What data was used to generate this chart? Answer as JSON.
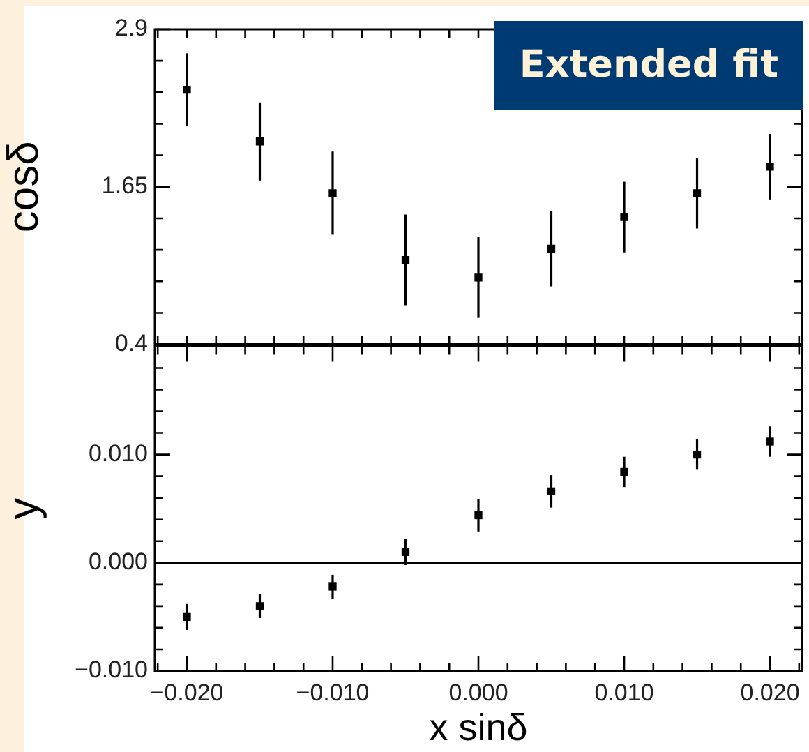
{
  "chart_data": [
    {
      "type": "scatter",
      "ylabel": "cosδ",
      "annotations": [
        "Extended fit"
      ],
      "tick_labels": "y",
      "marker": "square",
      "color": "#000000",
      "x": [
        -0.02,
        -0.015,
        -0.01,
        -0.005,
        0.0,
        0.005,
        0.01,
        0.015,
        0.02
      ],
      "values": [
        2.42,
        2.01,
        1.6,
        1.07,
        0.93,
        1.16,
        1.41,
        1.6,
        1.81
      ],
      "errors": [
        0.29,
        0.31,
        0.33,
        0.36,
        0.32,
        0.3,
        0.28,
        0.28,
        0.26
      ],
      "xlim": [
        -0.0222,
        0.0222
      ],
      "xticks": [
        {
          "value": -0.022,
          "label": null
        },
        {
          "value": -0.02,
          "label": null
        },
        {
          "value": -0.018,
          "label": null
        },
        {
          "value": -0.016,
          "label": null
        },
        {
          "value": -0.014,
          "label": null
        },
        {
          "value": -0.012,
          "label": null
        },
        {
          "value": -0.01,
          "label": null
        },
        {
          "value": -0.008,
          "label": null
        },
        {
          "value": -0.006,
          "label": null
        },
        {
          "value": -0.004,
          "label": null
        },
        {
          "value": -0.002,
          "label": null
        },
        {
          "value": 0,
          "label": null
        },
        {
          "value": 0.002,
          "label": null
        },
        {
          "value": 0.004,
          "label": null
        },
        {
          "value": 0.006,
          "label": null
        },
        {
          "value": 0.008,
          "label": null
        },
        {
          "value": 0.01,
          "label": null
        },
        {
          "value": 0.012,
          "label": null
        },
        {
          "value": 0.014,
          "label": null
        },
        {
          "value": 0.016,
          "label": null
        },
        {
          "value": 0.018,
          "label": null
        },
        {
          "value": 0.02,
          "label": null
        },
        {
          "value": 0.022,
          "label": null
        }
      ],
      "ylim": [
        0.4,
        2.9
      ],
      "yticks": [
        0.4,
        {
          "value": 0.65,
          "label": null
        },
        {
          "value": 0.9,
          "label": null
        },
        {
          "value": 1.15,
          "label": null
        },
        {
          "value": 1.4,
          "label": null
        },
        1.65,
        {
          "value": 1.9,
          "label": null
        },
        {
          "value": 2.15,
          "label": null
        },
        {
          "value": 2.4,
          "label": null
        },
        {
          "value": 2.65,
          "label": null
        },
        2.9
      ]
    },
    {
      "type": "scatter",
      "xlabel": "x sinδ",
      "ylabel": "y",
      "marker": "square",
      "color": "#000000",
      "x": [
        -0.02,
        -0.015,
        -0.01,
        -0.005,
        0.0,
        0.005,
        0.01,
        0.015,
        0.02
      ],
      "values": [
        -0.005,
        -0.004,
        -0.0022,
        0.001,
        0.0044,
        0.0066,
        0.0084,
        0.01,
        0.0112
      ],
      "errors": [
        0.0012,
        0.0011,
        0.0011,
        0.0012,
        0.0015,
        0.0015,
        0.0014,
        0.0014,
        0.0014
      ],
      "ref_lines": [
        {
          "axis": "y",
          "value": 0,
          "color": "#000000"
        }
      ],
      "xlim": [
        -0.0222,
        0.0222
      ],
      "xticks": [
        {
          "value": -0.022,
          "label": null
        },
        {
          "value": -0.02,
          "label": "−0.020"
        },
        {
          "value": -0.018,
          "label": null
        },
        {
          "value": -0.016,
          "label": null
        },
        {
          "value": -0.014,
          "label": null
        },
        {
          "value": -0.012,
          "label": null
        },
        {
          "value": -0.01,
          "label": "−0.010"
        },
        {
          "value": -0.008,
          "label": null
        },
        {
          "value": -0.006,
          "label": null
        },
        {
          "value": -0.004,
          "label": null
        },
        {
          "value": -0.002,
          "label": null
        },
        {
          "value": 0,
          "label": "0.000"
        },
        {
          "value": 0.002,
          "label": null
        },
        {
          "value": 0.004,
          "label": null
        },
        {
          "value": 0.006,
          "label": null
        },
        {
          "value": 0.008,
          "label": null
        },
        {
          "value": 0.01,
          "label": "0.010"
        },
        {
          "value": 0.012,
          "label": null
        },
        {
          "value": 0.014,
          "label": null
        },
        {
          "value": 0.016,
          "label": null
        },
        {
          "value": 0.018,
          "label": null
        },
        {
          "value": 0.02,
          "label": "0.020"
        },
        {
          "value": 0.022,
          "label": null
        }
      ],
      "ylim": [
        -0.01,
        0.02
      ],
      "yticks": [
        {
          "value": -0.01,
          "label": "−0.010"
        },
        {
          "value": -0.008,
          "label": null
        },
        {
          "value": -0.006,
          "label": null
        },
        {
          "value": -0.004,
          "label": null
        },
        {
          "value": -0.002,
          "label": null
        },
        {
          "value": 0,
          "label": "0.000"
        },
        {
          "value": 0.002,
          "label": null
        },
        {
          "value": 0.004,
          "label": null
        },
        {
          "value": 0.006,
          "label": null
        },
        {
          "value": 0.008,
          "label": null
        },
        {
          "value": 0.01,
          "label": "0.010"
        },
        {
          "value": 0.012,
          "label": null
        },
        {
          "value": 0.014,
          "label": null
        },
        {
          "value": 0.016,
          "label": null
        },
        {
          "value": 0.018,
          "label": null
        },
        {
          "value": 0.02,
          "label": null
        }
      ]
    }
  ]
}
